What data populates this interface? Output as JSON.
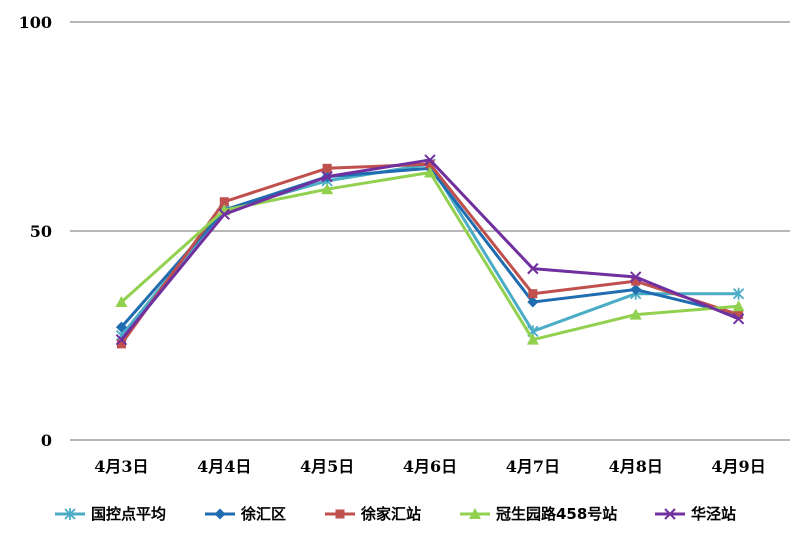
{
  "chart_data": {
    "type": "line",
    "title": "",
    "xlabel": "",
    "ylabel": "",
    "categories": [
      "4月3日",
      "4月4日",
      "4月5日",
      "4月6日",
      "4月7日",
      "4月8日",
      "4月9日"
    ],
    "ylim": [
      0,
      100
    ],
    "yticks": [
      0,
      50,
      100
    ],
    "grid": true,
    "legend": "bottom",
    "series": [
      {
        "name": "国控点平均",
        "color": "#4BACC6",
        "marker": "star",
        "values": [
          25,
          55,
          62,
          66,
          26,
          35,
          35
        ]
      },
      {
        "name": "徐汇区",
        "color": "#1F6CB0",
        "marker": "diamond",
        "values": [
          27,
          55,
          63,
          65,
          33,
          36,
          30
        ]
      },
      {
        "name": "徐家汇站",
        "color": "#C0504D",
        "marker": "square",
        "values": [
          23,
          57,
          65,
          66,
          35,
          38,
          30
        ]
      },
      {
        "name": "冠生园路458号站",
        "color": "#92D050",
        "marker": "triangle",
        "values": [
          33,
          55,
          60,
          64,
          24,
          30,
          32
        ]
      },
      {
        "name": "华泾站",
        "color": "#7030A0",
        "marker": "x",
        "values": [
          24,
          54,
          63,
          67,
          41,
          39,
          29
        ]
      }
    ]
  }
}
